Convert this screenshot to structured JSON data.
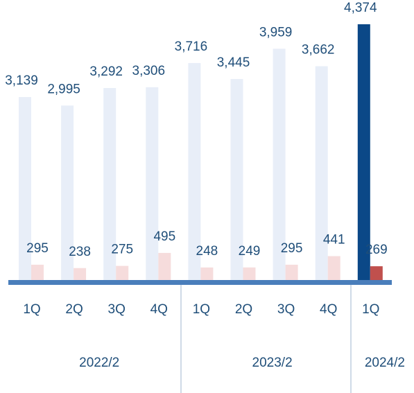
{
  "chart_data": {
    "type": "bar",
    "categories": [
      "1Q",
      "2Q",
      "3Q",
      "4Q",
      "1Q",
      "2Q",
      "3Q",
      "4Q",
      "1Q"
    ],
    "groups": [
      "2022/2",
      "2023/2",
      "2024/2"
    ],
    "series": [
      {
        "values": [
          3139,
          2995,
          3292,
          3306,
          3716,
          3445,
          3959,
          3662,
          4374
        ],
        "value_labels": [
          "3,139",
          "2,995",
          "3,292",
          "3,306",
          "3,716",
          "3,445",
          "3,959",
          "3,662",
          "4,374"
        ],
        "colors": [
          "#e8eef8",
          "#e8eef8",
          "#e8eef8",
          "#e8eef8",
          "#e8eef8",
          "#e8eef8",
          "#e8eef8",
          "#e8eef8",
          "#0b4887"
        ]
      },
      {
        "values": [
          295,
          238,
          275,
          495,
          248,
          249,
          295,
          441,
          269
        ],
        "colors": [
          "#f6dcdc",
          "#f6dcdc",
          "#f6dcdc",
          "#f6dcdc",
          "#f6dcdc",
          "#f6dcdc",
          "#f6dcdc",
          "#f6dcdc",
          "#c0504d"
        ]
      }
    ]
  }
}
